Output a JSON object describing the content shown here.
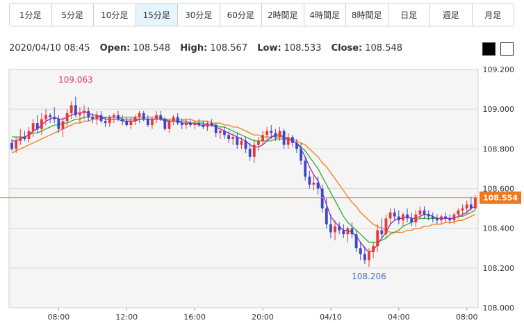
{
  "timeframe_tabs": [
    {
      "label": "1分足",
      "active": false
    },
    {
      "label": "5分足",
      "active": false
    },
    {
      "label": "10分足",
      "active": false
    },
    {
      "label": "15分足",
      "active": true
    },
    {
      "label": "30分足",
      "active": false
    },
    {
      "label": "60分足",
      "active": false
    },
    {
      "label": "2時間足",
      "active": false
    },
    {
      "label": "4時間足",
      "active": false
    },
    {
      "label": "8時間足",
      "active": false
    },
    {
      "label": "日足",
      "active": false
    },
    {
      "label": "週足",
      "active": false
    },
    {
      "label": "月足",
      "active": false
    }
  ],
  "ohlc": {
    "datetime": "2020/04/10 08:45",
    "open_label": "Open:",
    "open": "108.548",
    "high_label": "High:",
    "high": "108.567",
    "low_label": "Low:",
    "low": "108.533",
    "close_label": "Close:",
    "close": "108.548"
  },
  "theme_buttons": {
    "dark_color": "#000000",
    "light_color": "#ffffff"
  },
  "chart_data": {
    "type": "candlestick",
    "ylim": [
      108.0,
      109.2
    ],
    "yticks": [
      "109.200",
      "109.000",
      "108.800",
      "108.600",
      "108.400",
      "108.200",
      "108.000"
    ],
    "x_ticks": [
      "08:00",
      "12:00",
      "16:00",
      "20:00",
      "04/10",
      "04:00",
      "08:00"
    ],
    "current_price": "108.554",
    "annotations": [
      {
        "text": "109.063",
        "kind": "high",
        "value": 109.063
      },
      {
        "text": "108.206",
        "kind": "low",
        "value": 108.206
      }
    ],
    "colors": {
      "up": "#e8382f",
      "down": "#3a47c9",
      "ma_short": "#a020c8",
      "ma_mid": "#26b02b",
      "ma_long": "#f07d1b",
      "price_line": "#e8842f",
      "price_tag": "#f0781e",
      "high_text": "#e0405a",
      "low_text": "#4a6fc0"
    },
    "candles": [
      [
        108.83,
        108.85,
        108.79,
        108.8
      ],
      [
        108.8,
        108.86,
        108.78,
        108.84
      ],
      [
        108.84,
        108.9,
        108.82,
        108.86
      ],
      [
        108.86,
        108.89,
        108.84,
        108.85
      ],
      [
        108.85,
        108.91,
        108.83,
        108.89
      ],
      [
        108.89,
        108.95,
        108.86,
        108.93
      ],
      [
        108.93,
        108.97,
        108.88,
        108.9
      ],
      [
        108.9,
        108.98,
        108.87,
        108.95
      ],
      [
        108.95,
        109.0,
        108.92,
        108.97
      ],
      [
        108.97,
        108.98,
        108.93,
        108.96
      ],
      [
        108.96,
        109.01,
        108.93,
        108.95
      ],
      [
        108.95,
        108.97,
        108.88,
        108.9
      ],
      [
        108.9,
        108.96,
        108.86,
        108.94
      ],
      [
        108.94,
        109.0,
        108.91,
        108.98
      ],
      [
        108.98,
        109.04,
        108.95,
        109.02
      ],
      [
        109.02,
        109.063,
        108.96,
        108.97
      ],
      [
        108.97,
        109.01,
        108.93,
        108.98
      ],
      [
        108.98,
        109.02,
        108.95,
        108.99
      ],
      [
        108.99,
        109.01,
        108.94,
        108.96
      ],
      [
        108.96,
        108.98,
        108.93,
        108.95
      ],
      [
        108.95,
        108.99,
        108.92,
        108.97
      ],
      [
        108.97,
        108.99,
        108.93,
        108.94
      ],
      [
        108.94,
        108.96,
        108.91,
        108.93
      ],
      [
        108.93,
        108.97,
        108.91,
        108.96
      ],
      [
        108.96,
        108.98,
        108.93,
        108.97
      ],
      [
        108.97,
        108.99,
        108.94,
        108.95
      ],
      [
        108.95,
        108.97,
        108.92,
        108.94
      ],
      [
        108.94,
        108.96,
        108.91,
        108.92
      ],
      [
        108.92,
        108.96,
        108.9,
        108.94
      ],
      [
        108.94,
        108.97,
        108.92,
        108.96
      ],
      [
        108.96,
        108.99,
        108.93,
        108.98
      ],
      [
        108.98,
        108.99,
        108.94,
        108.95
      ],
      [
        108.95,
        108.97,
        108.91,
        108.92
      ],
      [
        108.92,
        108.96,
        108.9,
        108.95
      ],
      [
        108.95,
        108.99,
        108.93,
        108.97
      ],
      [
        108.97,
        108.99,
        108.94,
        108.95
      ],
      [
        108.95,
        108.96,
        108.89,
        108.9
      ],
      [
        108.9,
        108.95,
        108.88,
        108.94
      ],
      [
        108.94,
        108.97,
        108.92,
        108.96
      ],
      [
        108.96,
        108.98,
        108.92,
        108.93
      ],
      [
        108.93,
        108.95,
        108.9,
        108.92
      ],
      [
        108.92,
        108.95,
        108.9,
        108.93
      ],
      [
        108.93,
        108.95,
        108.91,
        108.92
      ],
      [
        108.92,
        108.94,
        108.9,
        108.93
      ],
      [
        108.93,
        108.95,
        108.91,
        108.92
      ],
      [
        108.92,
        108.94,
        108.9,
        108.91
      ],
      [
        108.91,
        108.94,
        108.89,
        108.93
      ],
      [
        108.93,
        108.95,
        108.91,
        108.92
      ],
      [
        108.92,
        108.93,
        108.86,
        108.88
      ],
      [
        108.88,
        108.91,
        108.85,
        108.89
      ],
      [
        108.89,
        108.91,
        108.85,
        108.87
      ],
      [
        108.87,
        108.89,
        108.83,
        108.85
      ],
      [
        108.85,
        108.88,
        108.82,
        108.86
      ],
      [
        108.86,
        108.88,
        108.8,
        108.82
      ],
      [
        108.82,
        108.86,
        108.8,
        108.84
      ],
      [
        108.84,
        108.86,
        108.78,
        108.8
      ],
      [
        108.8,
        108.83,
        108.74,
        108.76
      ],
      [
        108.76,
        108.85,
        108.73,
        108.82
      ],
      [
        108.82,
        108.86,
        108.79,
        108.84
      ],
      [
        108.84,
        108.89,
        108.82,
        108.87
      ],
      [
        108.87,
        108.91,
        108.84,
        108.89
      ],
      [
        108.89,
        108.92,
        108.85,
        108.88
      ],
      [
        108.88,
        108.9,
        108.84,
        108.86
      ],
      [
        108.86,
        108.91,
        108.84,
        108.89
      ],
      [
        108.89,
        108.9,
        108.8,
        108.82
      ],
      [
        108.82,
        108.88,
        108.8,
        108.86
      ],
      [
        108.86,
        108.87,
        108.81,
        108.83
      ],
      [
        108.83,
        108.85,
        108.78,
        108.8
      ],
      [
        108.8,
        108.83,
        108.72,
        108.74
      ],
      [
        108.74,
        108.76,
        108.64,
        108.66
      ],
      [
        108.66,
        108.69,
        108.6,
        108.62
      ],
      [
        108.62,
        108.67,
        108.59,
        108.63
      ],
      [
        108.63,
        108.66,
        108.57,
        108.6
      ],
      [
        108.6,
        108.62,
        108.48,
        108.5
      ],
      [
        108.5,
        108.55,
        108.4,
        108.42
      ],
      [
        108.42,
        108.47,
        108.35,
        108.38
      ],
      [
        108.38,
        108.44,
        108.34,
        108.41
      ],
      [
        108.41,
        108.43,
        108.37,
        108.39
      ],
      [
        108.39,
        108.42,
        108.35,
        108.37
      ],
      [
        108.37,
        108.41,
        108.33,
        108.4
      ],
      [
        108.4,
        108.43,
        108.35,
        108.37
      ],
      [
        108.37,
        108.39,
        108.28,
        108.3
      ],
      [
        108.3,
        108.33,
        108.24,
        108.27
      ],
      [
        108.27,
        108.31,
        108.22,
        108.24
      ],
      [
        108.24,
        108.3,
        108.206,
        108.28
      ],
      [
        108.28,
        108.33,
        108.25,
        108.31
      ],
      [
        108.31,
        108.42,
        108.28,
        108.39
      ],
      [
        108.39,
        108.45,
        108.35,
        108.37
      ],
      [
        108.37,
        108.47,
        108.35,
        108.45
      ],
      [
        108.45,
        108.5,
        108.42,
        108.48
      ],
      [
        108.48,
        108.5,
        108.44,
        108.46
      ],
      [
        108.46,
        108.49,
        108.42,
        108.44
      ],
      [
        108.44,
        108.48,
        108.41,
        108.47
      ],
      [
        108.47,
        108.5,
        108.43,
        108.45
      ],
      [
        108.45,
        108.48,
        108.41,
        108.43
      ],
      [
        108.43,
        108.49,
        108.41,
        108.47
      ],
      [
        108.47,
        108.51,
        108.45,
        108.49
      ],
      [
        108.49,
        108.51,
        108.45,
        108.47
      ],
      [
        108.47,
        108.49,
        108.44,
        108.46
      ],
      [
        108.46,
        108.48,
        108.43,
        108.45
      ],
      [
        108.45,
        108.47,
        108.42,
        108.44
      ],
      [
        108.44,
        108.47,
        108.42,
        108.46
      ],
      [
        108.46,
        108.48,
        108.43,
        108.45
      ],
      [
        108.45,
        108.47,
        108.42,
        108.44
      ],
      [
        108.44,
        108.48,
        108.42,
        108.47
      ],
      [
        108.47,
        108.5,
        108.45,
        108.49
      ],
      [
        108.49,
        108.52,
        108.46,
        108.5
      ],
      [
        108.5,
        108.54,
        108.47,
        108.52
      ],
      [
        108.52,
        108.56,
        108.49,
        108.5
      ],
      [
        108.5,
        108.567,
        108.49,
        108.554
      ]
    ],
    "ma_short": [
      108.84,
      108.84,
      108.85,
      108.86,
      108.87,
      108.89,
      108.9,
      108.92,
      108.94,
      108.95,
      108.96,
      108.95,
      108.95,
      108.96,
      108.97,
      108.98,
      108.98,
      108.99,
      108.98,
      108.97,
      108.97,
      108.96,
      108.95,
      108.95,
      108.95,
      108.95,
      108.94,
      108.94,
      108.94,
      108.94,
      108.95,
      108.95,
      108.95,
      108.95,
      108.95,
      108.95,
      108.94,
      108.94,
      108.94,
      108.94,
      108.93,
      108.93,
      108.93,
      108.93,
      108.92,
      108.92,
      108.92,
      108.92,
      108.91,
      108.9,
      108.89,
      108.88,
      108.87,
      108.86,
      108.85,
      108.84,
      108.82,
      108.81,
      108.81,
      108.82,
      108.84,
      108.86,
      108.87,
      108.87,
      108.86,
      108.85,
      108.84,
      108.83,
      108.8,
      108.76,
      108.71,
      108.67,
      108.64,
      108.58,
      108.52,
      108.46,
      108.43,
      108.41,
      108.39,
      108.39,
      108.38,
      108.36,
      108.33,
      108.3,
      108.28,
      108.29,
      108.32,
      108.35,
      108.38,
      108.42,
      108.44,
      108.45,
      108.45,
      108.46,
      108.45,
      108.45,
      108.46,
      108.47,
      108.47,
      108.46,
      108.45,
      108.45,
      108.45,
      108.45,
      108.45,
      108.46,
      108.47,
      108.48,
      108.5,
      108.51
    ],
    "ma_mid": [
      108.86,
      108.86,
      108.86,
      108.86,
      108.87,
      108.88,
      108.88,
      108.89,
      108.9,
      108.91,
      108.92,
      108.92,
      108.93,
      108.93,
      108.94,
      108.95,
      108.95,
      108.96,
      108.96,
      108.96,
      108.96,
      108.96,
      108.96,
      108.96,
      108.96,
      108.96,
      108.95,
      108.95,
      108.95,
      108.95,
      108.95,
      108.95,
      108.95,
      108.95,
      108.95,
      108.95,
      108.95,
      108.94,
      108.94,
      108.94,
      108.94,
      108.94,
      108.93,
      108.93,
      108.93,
      108.93,
      108.92,
      108.92,
      108.92,
      108.91,
      108.91,
      108.9,
      108.89,
      108.88,
      108.87,
      108.86,
      108.85,
      108.84,
      108.84,
      108.84,
      108.84,
      108.84,
      108.85,
      108.85,
      108.85,
      108.85,
      108.84,
      108.83,
      108.81,
      108.79,
      108.76,
      108.73,
      108.7,
      108.66,
      108.62,
      108.58,
      108.54,
      108.5,
      108.46,
      108.43,
      108.41,
      108.39,
      108.37,
      108.35,
      108.33,
      108.33,
      108.33,
      108.34,
      108.35,
      108.37,
      108.38,
      108.39,
      108.41,
      108.42,
      108.43,
      108.44,
      108.45,
      108.45,
      108.45,
      108.45,
      108.45,
      108.45,
      108.45,
      108.45,
      108.45,
      108.46,
      108.46,
      108.47,
      108.48,
      108.49
    ],
    "ma_long": [
      108.78,
      108.79,
      108.8,
      108.81,
      108.82,
      108.83,
      108.84,
      108.85,
      108.86,
      108.87,
      108.88,
      108.89,
      108.9,
      108.91,
      108.92,
      108.93,
      108.93,
      108.94,
      108.94,
      108.95,
      108.95,
      108.95,
      108.96,
      108.96,
      108.96,
      108.96,
      108.96,
      108.96,
      108.96,
      108.96,
      108.96,
      108.96,
      108.96,
      108.96,
      108.96,
      108.96,
      108.95,
      108.95,
      108.95,
      108.95,
      108.95,
      108.95,
      108.95,
      108.94,
      108.94,
      108.94,
      108.94,
      108.93,
      108.93,
      108.93,
      108.92,
      108.92,
      108.91,
      108.91,
      108.9,
      108.89,
      108.88,
      108.87,
      108.87,
      108.86,
      108.86,
      108.86,
      108.86,
      108.86,
      108.86,
      108.85,
      108.85,
      108.84,
      108.83,
      108.82,
      108.8,
      108.78,
      108.76,
      108.73,
      108.71,
      108.68,
      108.65,
      108.62,
      108.59,
      108.56,
      108.53,
      108.51,
      108.48,
      108.46,
      108.44,
      108.42,
      108.41,
      108.4,
      108.39,
      108.38,
      108.38,
      108.38,
      108.38,
      108.39,
      108.39,
      108.4,
      108.4,
      108.41,
      108.41,
      108.42,
      108.42,
      108.42,
      108.43,
      108.43,
      108.43,
      108.44,
      108.44,
      108.45,
      108.46,
      108.47
    ]
  }
}
